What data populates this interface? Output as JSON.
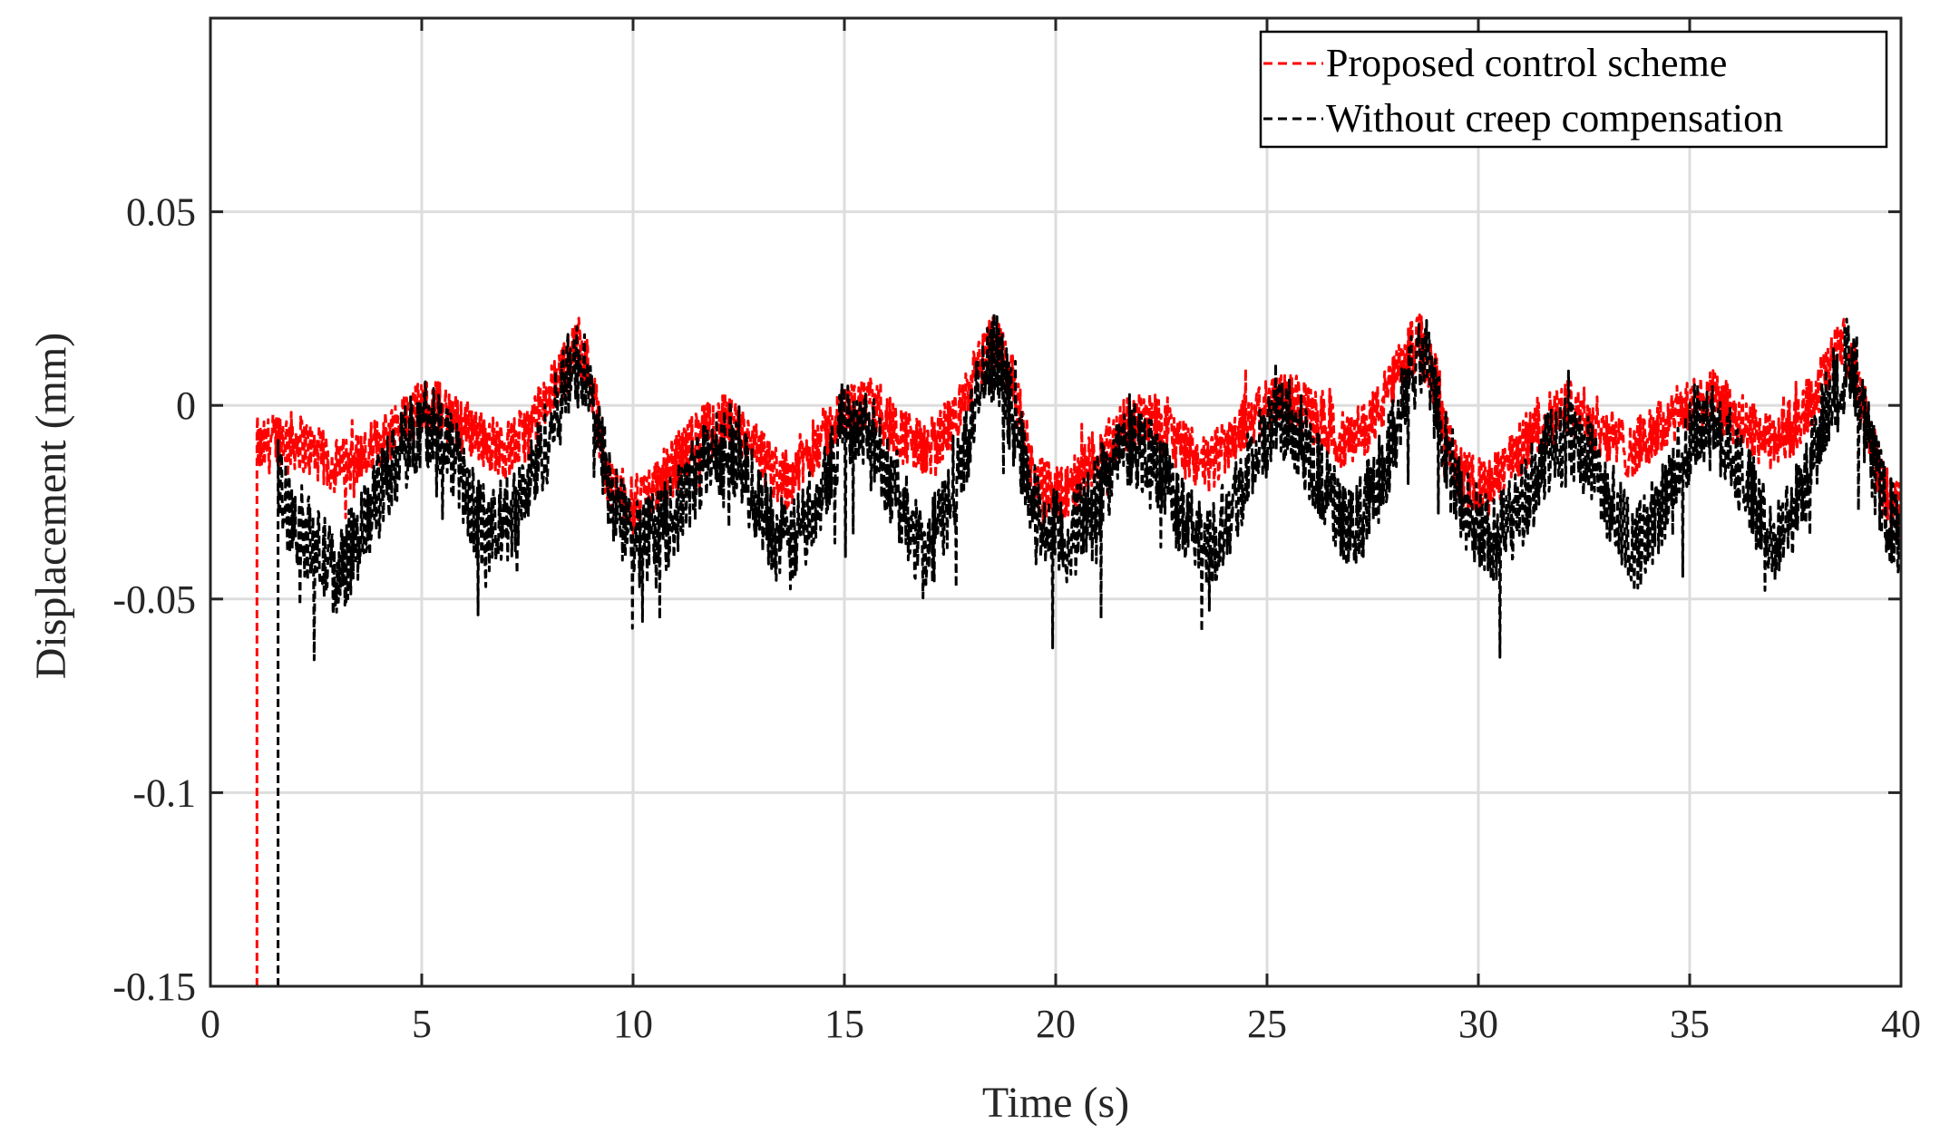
{
  "chart_data": {
    "type": "line",
    "title": "",
    "xlabel": "Time (s)",
    "ylabel": "Displacement (mm)",
    "xlim": [
      0,
      40
    ],
    "ylim": [
      -0.15,
      0.1
    ],
    "grid": true,
    "xticks": [
      0,
      5,
      10,
      15,
      20,
      25,
      30,
      35,
      40
    ],
    "xtick_labels": [
      "0",
      "5",
      "10",
      "15",
      "20",
      "25",
      "30",
      "35",
      "40"
    ],
    "yticks": [
      -0.15,
      -0.1,
      -0.05,
      0,
      0.05
    ],
    "ytick_labels": [
      "-0.15",
      "-0.1",
      "-0.05",
      "0",
      "0.05"
    ],
    "legend_position": "top-right",
    "series": [
      {
        "name": "Proposed control scheme",
        "color": "#ff0000",
        "style": "dashed",
        "x": [
          1.1,
          1.1,
          1.2,
          1.6,
          2.2,
          3.0,
          3.8,
          4.5,
          5.2,
          5.9,
          6.4,
          7.0,
          7.6,
          8.2,
          8.7,
          9.0,
          9.4,
          10.0,
          10.8,
          11.5,
          12.2,
          12.9,
          13.6,
          14.3,
          15.0,
          15.6,
          16.2,
          16.9,
          17.6,
          18.1,
          18.6,
          19.0,
          19.5,
          20.2,
          20.9,
          21.6,
          22.2,
          22.9,
          23.6,
          24.3,
          25.0,
          25.5,
          26.2,
          26.9,
          27.6,
          28.2,
          28.6,
          29.0,
          29.5,
          30.2,
          30.9,
          31.6,
          32.2,
          32.9,
          33.6,
          34.3,
          35.0,
          35.5,
          36.2,
          36.9,
          37.6,
          38.2,
          38.6,
          39.0,
          39.5,
          40.0
        ],
        "y": [
          -0.15,
          -0.01,
          -0.012,
          -0.008,
          -0.01,
          -0.016,
          -0.012,
          -0.004,
          0.0,
          -0.004,
          -0.008,
          -0.012,
          -0.006,
          0.006,
          0.016,
          0.008,
          -0.02,
          -0.026,
          -0.018,
          -0.008,
          -0.004,
          -0.012,
          -0.02,
          -0.01,
          -0.002,
          0.0,
          -0.006,
          -0.012,
          -0.004,
          0.008,
          0.018,
          0.006,
          -0.02,
          -0.024,
          -0.014,
          -0.006,
          -0.002,
          -0.01,
          -0.016,
          -0.006,
          0.0,
          0.002,
          -0.004,
          -0.01,
          -0.002,
          0.01,
          0.018,
          0.006,
          -0.018,
          -0.022,
          -0.012,
          -0.004,
          0.0,
          -0.006,
          -0.012,
          -0.006,
          0.0,
          0.002,
          -0.004,
          -0.01,
          -0.004,
          0.008,
          0.016,
          0.006,
          -0.02,
          -0.028
        ]
      },
      {
        "name": "Without creep compensation",
        "color": "#000000",
        "style": "dashed",
        "x": [
          1.6,
          1.6,
          1.8,
          2.4,
          3.0,
          3.6,
          4.3,
          5.0,
          5.5,
          6.1,
          6.6,
          7.3,
          8.0,
          8.6,
          9.0,
          9.5,
          10.2,
          10.9,
          11.6,
          12.3,
          13.0,
          13.7,
          14.4,
          15.0,
          15.5,
          16.2,
          16.9,
          17.6,
          18.2,
          18.6,
          19.0,
          19.6,
          20.3,
          21.0,
          21.7,
          22.3,
          23.0,
          23.7,
          24.4,
          25.1,
          25.6,
          26.3,
          27.0,
          27.7,
          28.3,
          28.7,
          29.1,
          29.6,
          30.3,
          31.0,
          31.7,
          32.3,
          33.0,
          33.7,
          34.4,
          35.1,
          35.6,
          36.3,
          37.0,
          37.7,
          38.3,
          38.7,
          39.1,
          39.6,
          40.0
        ],
        "y": [
          -0.15,
          -0.02,
          -0.026,
          -0.036,
          -0.044,
          -0.032,
          -0.016,
          -0.004,
          -0.006,
          -0.024,
          -0.034,
          -0.026,
          -0.008,
          0.012,
          0.004,
          -0.026,
          -0.036,
          -0.03,
          -0.016,
          -0.01,
          -0.026,
          -0.038,
          -0.022,
          -0.004,
          -0.004,
          -0.022,
          -0.04,
          -0.022,
          0.004,
          0.014,
          -0.004,
          -0.03,
          -0.036,
          -0.022,
          -0.01,
          -0.012,
          -0.03,
          -0.036,
          -0.02,
          -0.006,
          -0.004,
          -0.02,
          -0.034,
          -0.018,
          0.004,
          0.014,
          -0.004,
          -0.026,
          -0.036,
          -0.026,
          -0.012,
          -0.008,
          -0.022,
          -0.038,
          -0.024,
          -0.006,
          -0.004,
          -0.02,
          -0.036,
          -0.022,
          0.002,
          0.012,
          -0.004,
          -0.026,
          -0.036
        ]
      }
    ]
  }
}
